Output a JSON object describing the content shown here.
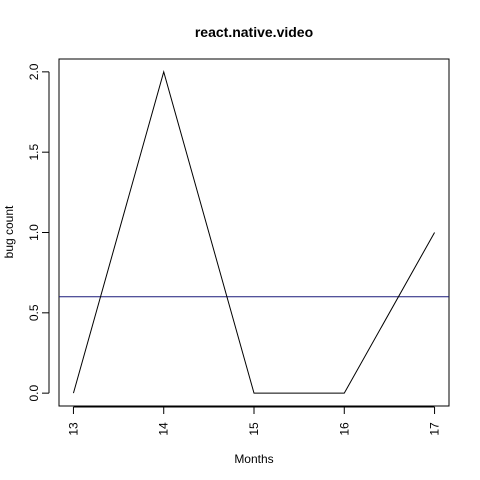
{
  "chart_data": {
    "type": "line",
    "title": "react.native.video",
    "xlabel": "Months",
    "ylabel": "bug count",
    "x": [
      13,
      14,
      15,
      16,
      17
    ],
    "series": [
      {
        "name": "bug count",
        "values": [
          0,
          2,
          0,
          0,
          1
        ],
        "color": "#000000"
      }
    ],
    "reference_line": {
      "y": 0.6,
      "color": "#1a1a7a"
    },
    "xlim": [
      12.84,
      17.16
    ],
    "ylim": [
      -0.08,
      2.08
    ],
    "x_ticks": [
      13,
      14,
      15,
      16,
      17
    ],
    "x_tick_labels": [
      "13",
      "14",
      "15",
      "16",
      "17"
    ],
    "y_ticks": [
      0.0,
      0.5,
      1.0,
      1.5,
      2.0
    ],
    "y_tick_labels": [
      "0.0",
      "0.5",
      "1.0",
      "1.5",
      "2.0"
    ],
    "grid": false,
    "legend": "none"
  }
}
